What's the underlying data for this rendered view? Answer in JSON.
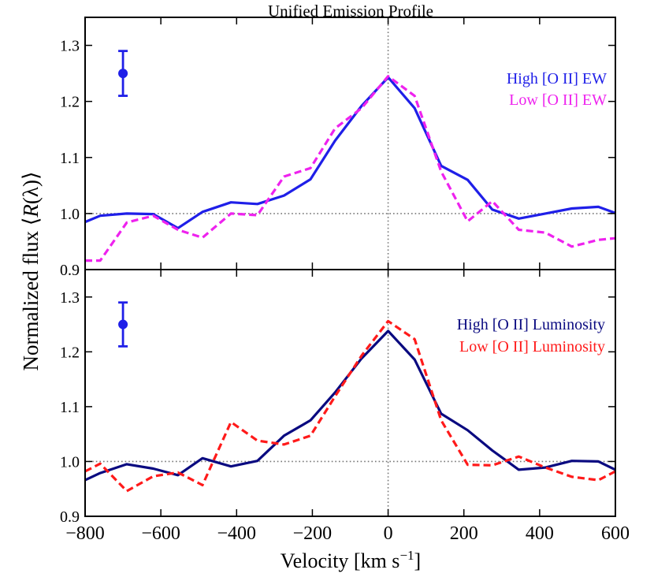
{
  "chart_data": {
    "type": "line",
    "title": "Unified Emission Profile",
    "xlabel": "Velocity [km s",
    "xlabel_sup": "−1",
    "xlabel_end": "]",
    "ylabel": "Normalized flux ⟨R(λ)⟩",
    "xlim": [
      -800,
      600
    ],
    "xticks": [
      -800,
      -600,
      -400,
      -200,
      0,
      200,
      400,
      600
    ],
    "xtick_labels": [
      "−800",
      "−600",
      "−400",
      "−200",
      "0",
      "200",
      "400",
      "600"
    ],
    "ylim": [
      0.9,
      1.35
    ],
    "yticks": [
      0.9,
      1.0,
      1.1,
      1.2,
      1.3
    ],
    "ytick_labels": [
      "0.9",
      "1.0",
      "1.1",
      "1.2",
      "1.3"
    ],
    "panels": [
      {
        "error_bar": {
          "x": -700,
          "y": 1.25,
          "err": 0.04,
          "color": "#1f1fe8"
        },
        "series": [
          {
            "name": "High [O II] EW",
            "color": "#1f1fe8",
            "style": "solid",
            "x": [
              -800,
              -760,
              -690,
              -620,
              -555,
              -490,
              -415,
              -345,
              -275,
              -205,
              -140,
              -70,
              0,
              70,
              140,
              210,
              275,
              345,
              415,
              485,
              555,
              600
            ],
            "y": [
              0.985,
              0.996,
              1.0,
              0.999,
              0.974,
              1.003,
              1.02,
              1.017,
              1.032,
              1.061,
              1.13,
              1.192,
              1.243,
              1.188,
              1.085,
              1.06,
              1.007,
              0.991,
              1.0,
              1.009,
              1.012,
              1.001
            ]
          },
          {
            "name": "Low [O II] EW",
            "color": "#ee22ee",
            "style": "dashed",
            "x": [
              -800,
              -760,
              -690,
              -620,
              -555,
              -490,
              -415,
              -345,
              -275,
              -205,
              -140,
              -70,
              0,
              70,
              140,
              210,
              275,
              345,
              415,
              485,
              555,
              600
            ],
            "y": [
              0.916,
              0.916,
              0.984,
              0.996,
              0.971,
              0.957,
              1.0,
              0.997,
              1.066,
              1.081,
              1.152,
              1.188,
              1.245,
              1.21,
              1.075,
              0.986,
              1.022,
              0.971,
              0.966,
              0.941,
              0.953,
              0.956
            ]
          }
        ]
      },
      {
        "error_bar": {
          "x": -700,
          "y": 1.25,
          "err": 0.04,
          "color": "#1f1fe8"
        },
        "series": [
          {
            "name": "High [O II] Luminosity",
            "color": "#0a0a80",
            "style": "solid",
            "x": [
              -800,
              -760,
              -690,
              -620,
              -555,
              -490,
              -415,
              -345,
              -275,
              -205,
              -140,
              -70,
              0,
              70,
              140,
              210,
              275,
              345,
              415,
              485,
              555,
              600
            ],
            "y": [
              0.966,
              0.979,
              0.995,
              0.987,
              0.975,
              1.006,
              0.991,
              1.001,
              1.047,
              1.075,
              1.126,
              1.188,
              1.238,
              1.186,
              1.087,
              1.057,
              1.02,
              0.985,
              0.989,
              1.001,
              1.0,
              0.985
            ]
          },
          {
            "name": "Low [O II] Luminosity",
            "color": "#ff1a1a",
            "style": "dashed",
            "x": [
              -800,
              -760,
              -690,
              -620,
              -555,
              -490,
              -415,
              -345,
              -275,
              -205,
              -140,
              -70,
              0,
              70,
              140,
              210,
              275,
              345,
              415,
              485,
              555,
              600
            ],
            "y": [
              0.982,
              0.996,
              0.946,
              0.973,
              0.98,
              0.957,
              1.072,
              1.038,
              1.031,
              1.047,
              1.119,
              1.193,
              1.256,
              1.223,
              1.075,
              0.994,
              0.993,
              1.009,
              0.989,
              0.972,
              0.966,
              0.982
            ]
          }
        ]
      }
    ]
  }
}
